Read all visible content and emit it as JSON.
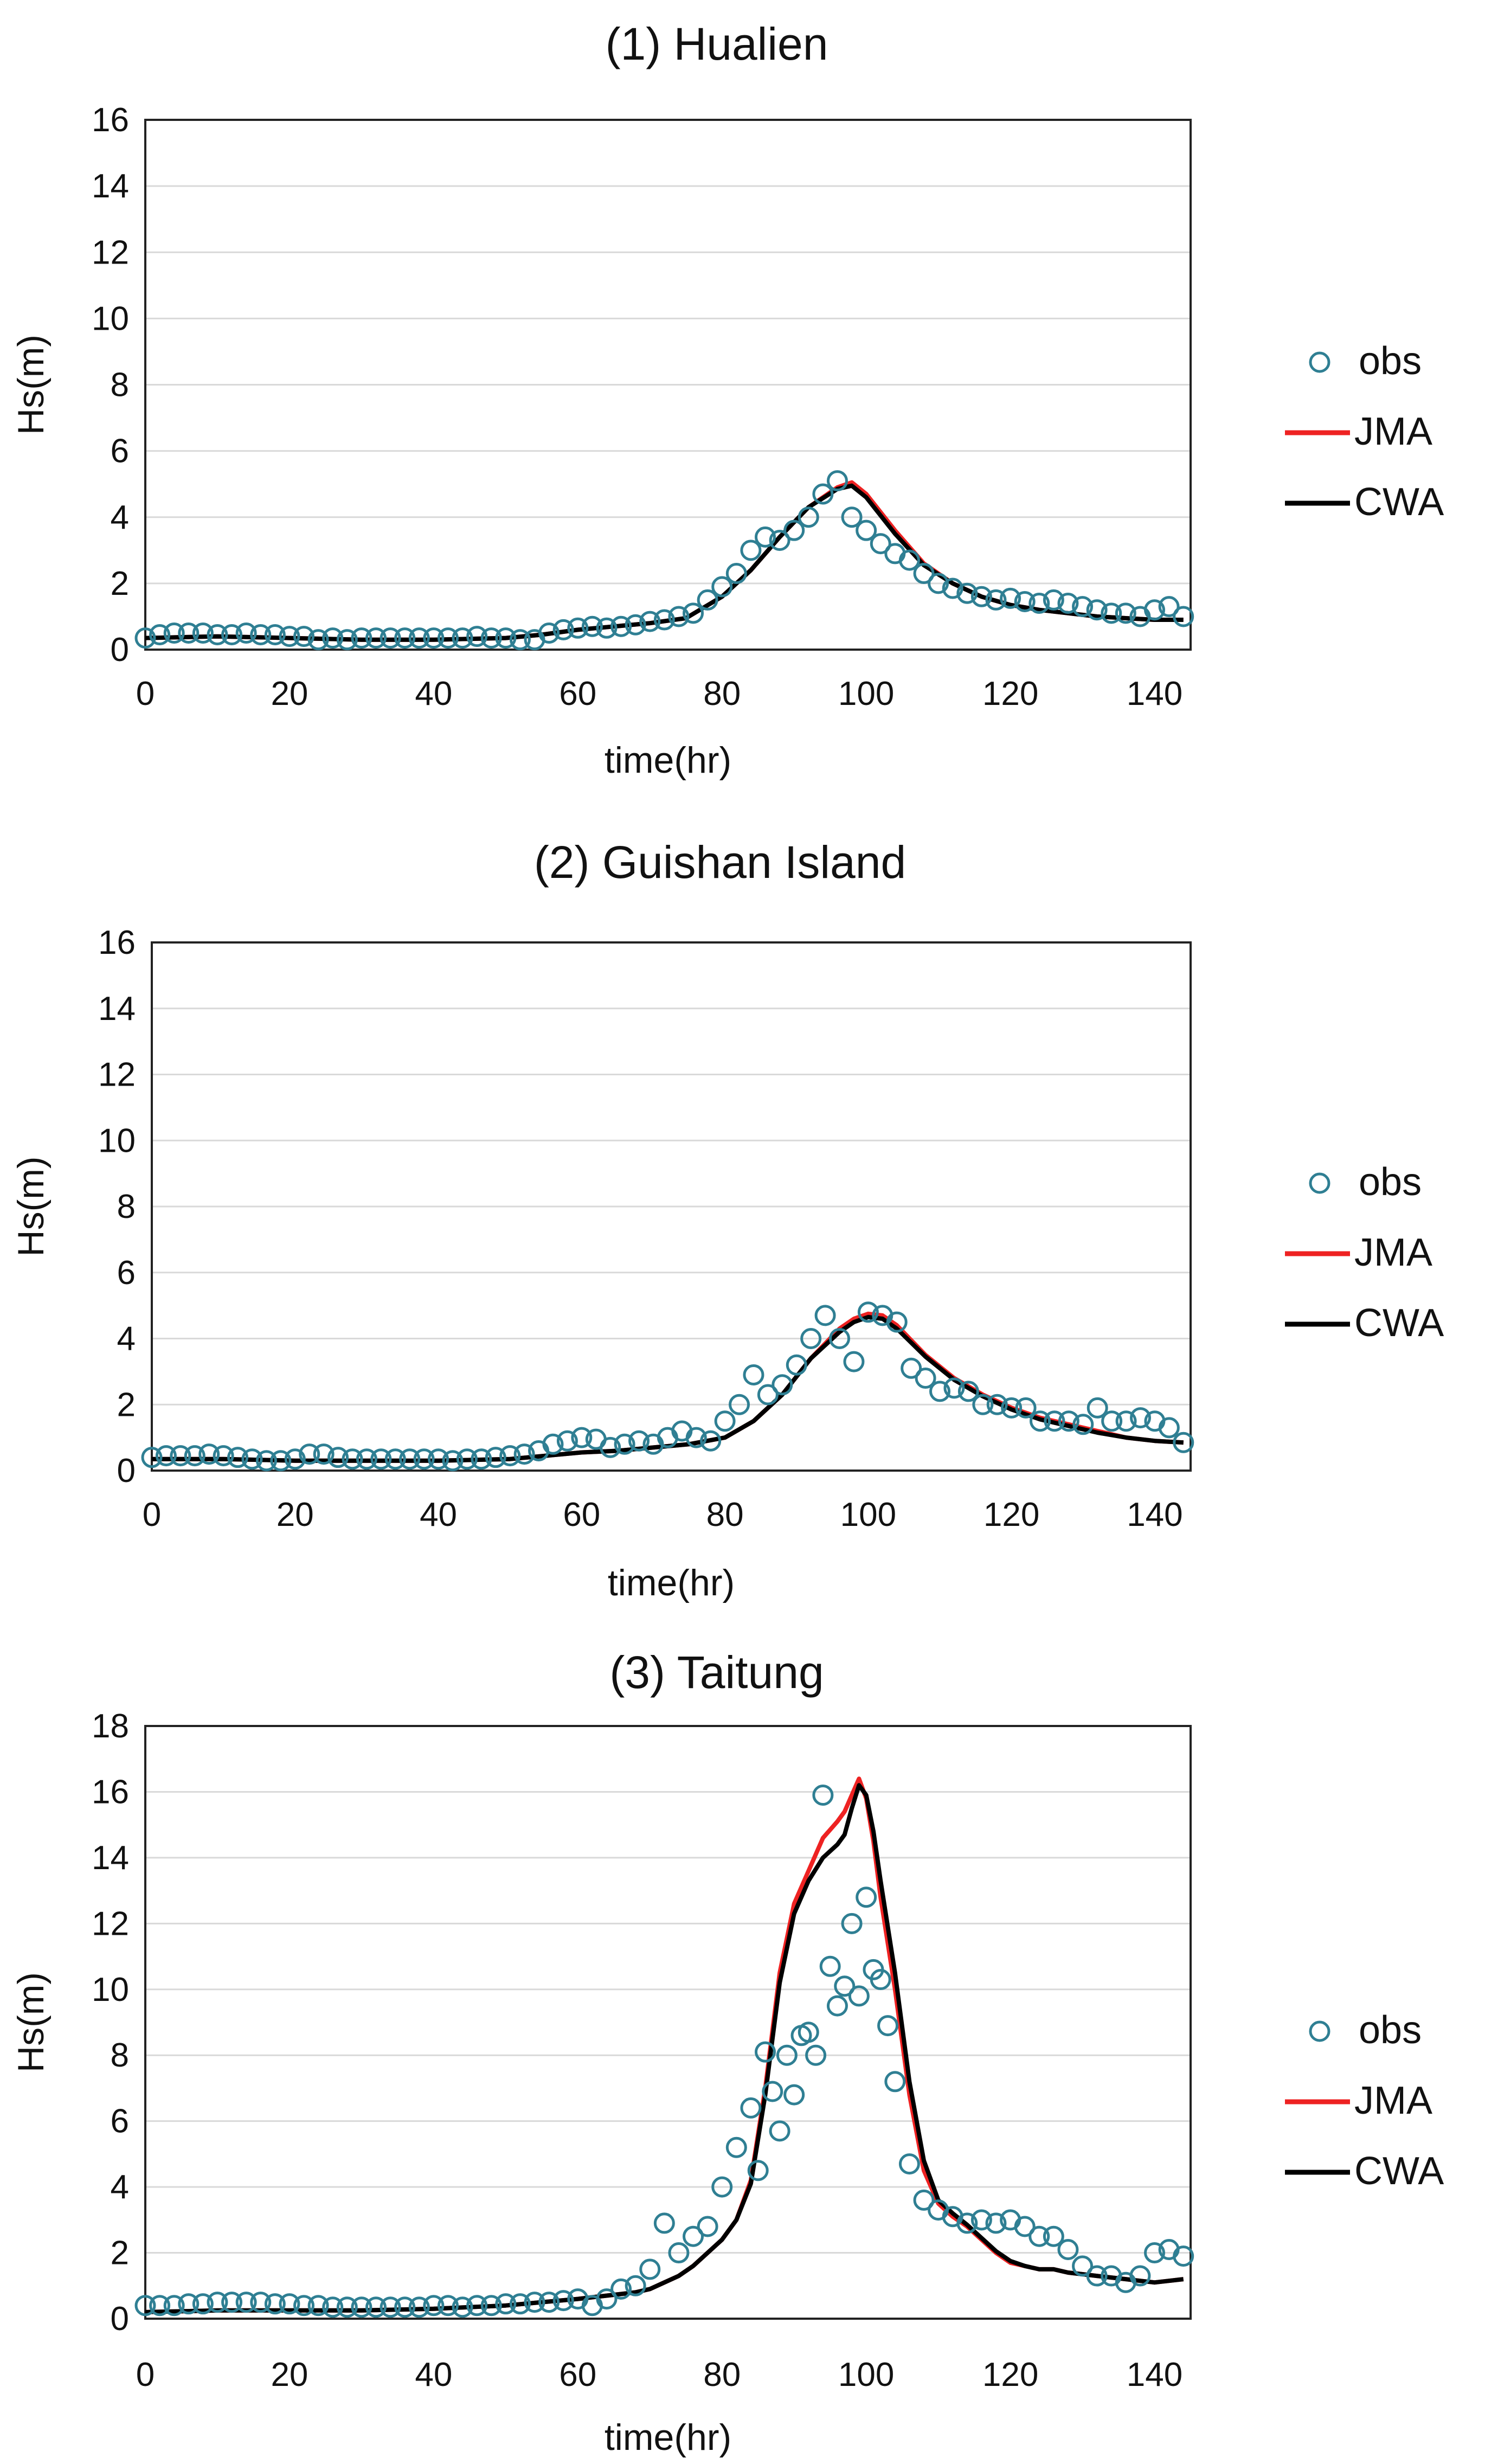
{
  "chart_data": [
    {
      "type": "line",
      "title": "(1) Hualien",
      "xlabel": "time(hr)",
      "ylabel": "Hs(m)",
      "xlim": [
        0,
        145
      ],
      "ylim": [
        0,
        16
      ],
      "xticks": [
        0,
        20,
        40,
        60,
        80,
        100,
        120,
        140
      ],
      "yticks": [
        0,
        2,
        4,
        6,
        8,
        10,
        12,
        14,
        16
      ],
      "grid": true,
      "legend": "right",
      "colors": {
        "obs": "#2f7f93",
        "JMA": "#ee2222",
        "CWA": "#000000"
      },
      "series": [
        {
          "name": "obs",
          "style": "markers",
          "x": [
            0,
            2,
            4,
            6,
            8,
            10,
            12,
            14,
            16,
            18,
            20,
            22,
            24,
            26,
            28,
            30,
            32,
            34,
            36,
            38,
            40,
            42,
            44,
            46,
            48,
            50,
            52,
            54,
            56,
            58,
            60,
            62,
            64,
            66,
            68,
            70,
            72,
            74,
            76,
            78,
            80,
            82,
            84,
            86,
            88,
            90,
            92,
            94,
            96,
            98,
            100,
            102,
            104,
            106,
            108,
            110,
            112,
            114,
            116,
            118,
            120,
            122,
            124,
            126,
            128,
            130,
            132,
            134,
            136,
            138,
            140,
            142,
            144
          ],
          "y": [
            0.35,
            0.45,
            0.5,
            0.5,
            0.5,
            0.45,
            0.45,
            0.5,
            0.45,
            0.45,
            0.4,
            0.4,
            0.3,
            0.35,
            0.3,
            0.35,
            0.35,
            0.35,
            0.35,
            0.35,
            0.35,
            0.35,
            0.35,
            0.4,
            0.35,
            0.35,
            0.3,
            0.3,
            0.5,
            0.6,
            0.65,
            0.7,
            0.65,
            0.7,
            0.75,
            0.85,
            0.9,
            1.0,
            1.1,
            1.5,
            1.9,
            2.3,
            3.0,
            3.4,
            3.3,
            3.6,
            4.0,
            4.7,
            5.1,
            4.0,
            3.6,
            3.2,
            2.9,
            2.7,
            2.3,
            2.0,
            1.85,
            1.7,
            1.6,
            1.5,
            1.55,
            1.45,
            1.4,
            1.5,
            1.4,
            1.3,
            1.2,
            1.1,
            1.1,
            1.0,
            1.2,
            1.3,
            1.0
          ]
        },
        {
          "name": "JMA",
          "style": "line",
          "x": [
            0,
            10,
            20,
            30,
            40,
            50,
            55,
            60,
            65,
            70,
            75,
            80,
            84,
            88,
            92,
            96,
            98,
            100,
            104,
            108,
            112,
            116,
            120,
            124,
            128,
            132,
            136,
            140,
            144
          ],
          "y": [
            0.35,
            0.4,
            0.35,
            0.3,
            0.3,
            0.35,
            0.45,
            0.6,
            0.7,
            0.8,
            0.95,
            1.6,
            2.4,
            3.4,
            4.3,
            4.9,
            5.05,
            4.7,
            3.6,
            2.6,
            2.0,
            1.6,
            1.35,
            1.2,
            1.1,
            1.0,
            0.95,
            0.9,
            0.9
          ]
        },
        {
          "name": "CWA",
          "style": "line",
          "x": [
            0,
            10,
            20,
            30,
            40,
            50,
            55,
            60,
            65,
            70,
            75,
            80,
            84,
            88,
            92,
            96,
            98,
            100,
            104,
            108,
            112,
            116,
            120,
            124,
            128,
            132,
            136,
            140,
            144
          ],
          "y": [
            0.35,
            0.4,
            0.35,
            0.3,
            0.3,
            0.35,
            0.45,
            0.6,
            0.7,
            0.8,
            0.95,
            1.6,
            2.4,
            3.4,
            4.3,
            4.85,
            4.95,
            4.6,
            3.5,
            2.55,
            2.0,
            1.6,
            1.35,
            1.2,
            1.1,
            1.0,
            0.95,
            0.9,
            0.9
          ]
        }
      ]
    },
    {
      "type": "line",
      "title": "(2) Guishan Island",
      "xlabel": "time(hr)",
      "ylabel": "Hs(m)",
      "xlim": [
        0,
        145
      ],
      "ylim": [
        0,
        16
      ],
      "xticks": [
        0,
        20,
        40,
        60,
        80,
        100,
        120,
        140
      ],
      "yticks": [
        0,
        2,
        4,
        6,
        8,
        10,
        12,
        14,
        16
      ],
      "grid": true,
      "legend": "right",
      "colors": {
        "obs": "#2f7f93",
        "JMA": "#ee2222",
        "CWA": "#000000"
      },
      "series": [
        {
          "name": "obs",
          "style": "markers",
          "x": [
            0,
            2,
            4,
            6,
            8,
            10,
            12,
            14,
            16,
            18,
            20,
            22,
            24,
            26,
            28,
            30,
            32,
            34,
            36,
            38,
            40,
            42,
            44,
            46,
            48,
            50,
            52,
            54,
            56,
            58,
            60,
            62,
            64,
            66,
            68,
            70,
            72,
            74,
            76,
            78,
            80,
            82,
            84,
            86,
            88,
            90,
            92,
            94,
            96,
            98,
            100,
            102,
            104,
            106,
            108,
            110,
            112,
            114,
            116,
            118,
            120,
            122,
            124,
            126,
            128,
            130,
            132,
            134,
            136,
            138,
            140,
            142,
            144
          ],
          "y": [
            0.4,
            0.45,
            0.45,
            0.45,
            0.5,
            0.45,
            0.4,
            0.35,
            0.3,
            0.3,
            0.35,
            0.5,
            0.5,
            0.4,
            0.35,
            0.35,
            0.35,
            0.35,
            0.35,
            0.35,
            0.35,
            0.3,
            0.35,
            0.35,
            0.4,
            0.45,
            0.5,
            0.6,
            0.8,
            0.9,
            1.0,
            0.95,
            0.7,
            0.8,
            0.9,
            0.8,
            1.0,
            1.2,
            1.0,
            0.9,
            1.5,
            2.0,
            2.9,
            2.3,
            2.6,
            3.2,
            4.0,
            4.7,
            4.0,
            3.3,
            4.8,
            4.7,
            4.5,
            3.1,
            2.8,
            2.4,
            2.5,
            2.4,
            2.0,
            2.0,
            1.9,
            1.9,
            1.5,
            1.5,
            1.5,
            1.4,
            1.9,
            1.5,
            1.5,
            1.6,
            1.5,
            1.3,
            0.85
          ]
        },
        {
          "name": "JMA",
          "style": "line",
          "x": [
            0,
            10,
            20,
            30,
            40,
            50,
            55,
            60,
            65,
            70,
            75,
            80,
            84,
            88,
            92,
            96,
            98,
            100,
            102,
            104,
            108,
            112,
            116,
            120,
            124,
            128,
            132,
            136,
            140,
            144
          ],
          "y": [
            0.35,
            0.35,
            0.3,
            0.3,
            0.3,
            0.35,
            0.45,
            0.55,
            0.6,
            0.7,
            0.8,
            1.0,
            1.5,
            2.3,
            3.4,
            4.3,
            4.6,
            4.75,
            4.7,
            4.4,
            3.5,
            2.8,
            2.3,
            1.9,
            1.6,
            1.4,
            1.2,
            1.0,
            0.9,
            0.85
          ]
        },
        {
          "name": "CWA",
          "style": "line",
          "x": [
            0,
            10,
            20,
            30,
            40,
            50,
            55,
            60,
            65,
            70,
            75,
            80,
            84,
            88,
            92,
            96,
            98,
            100,
            102,
            104,
            108,
            112,
            116,
            120,
            124,
            128,
            132,
            136,
            140,
            144
          ],
          "y": [
            0.35,
            0.35,
            0.3,
            0.3,
            0.3,
            0.35,
            0.45,
            0.55,
            0.6,
            0.7,
            0.8,
            1.0,
            1.5,
            2.3,
            3.4,
            4.2,
            4.5,
            4.65,
            4.6,
            4.3,
            3.45,
            2.75,
            2.25,
            1.85,
            1.55,
            1.35,
            1.15,
            1.0,
            0.9,
            0.85
          ]
        }
      ]
    },
    {
      "type": "line",
      "title": "(3) Taitung",
      "xlabel": "time(hr)",
      "ylabel": "Hs(m)",
      "xlim": [
        0,
        145
      ],
      "ylim": [
        0,
        18
      ],
      "xticks": [
        0,
        20,
        40,
        60,
        80,
        100,
        120,
        140
      ],
      "yticks": [
        0,
        2,
        4,
        6,
        8,
        10,
        12,
        14,
        16,
        18
      ],
      "grid": true,
      "legend": "right",
      "colors": {
        "obs": "#2f7f93",
        "JMA": "#ee2222",
        "CWA": "#000000"
      },
      "series": [
        {
          "name": "obs",
          "style": "markers",
          "x": [
            0,
            2,
            4,
            6,
            8,
            10,
            12,
            14,
            16,
            18,
            20,
            22,
            24,
            26,
            28,
            30,
            32,
            34,
            36,
            38,
            40,
            42,
            44,
            46,
            48,
            50,
            52,
            54,
            56,
            58,
            60,
            62,
            64,
            66,
            68,
            70,
            72,
            74,
            76,
            78,
            80,
            82,
            84,
            85,
            86,
            87,
            88,
            89,
            90,
            91,
            92,
            93,
            94,
            95,
            96,
            97,
            98,
            99,
            100,
            101,
            102,
            103,
            104,
            106,
            108,
            110,
            112,
            114,
            116,
            118,
            120,
            122,
            124,
            126,
            128,
            130,
            132,
            134,
            136,
            138,
            140,
            142,
            144
          ],
          "y": [
            0.4,
            0.4,
            0.4,
            0.45,
            0.45,
            0.5,
            0.5,
            0.5,
            0.5,
            0.45,
            0.45,
            0.4,
            0.4,
            0.35,
            0.35,
            0.35,
            0.35,
            0.35,
            0.35,
            0.35,
            0.4,
            0.4,
            0.35,
            0.4,
            0.4,
            0.45,
            0.45,
            0.5,
            0.5,
            0.55,
            0.6,
            0.4,
            0.6,
            0.9,
            1.0,
            1.5,
            2.9,
            2.0,
            2.5,
            2.8,
            4.0,
            5.2,
            6.4,
            4.5,
            8.1,
            6.9,
            5.7,
            8.0,
            6.8,
            8.6,
            8.7,
            8.0,
            15.9,
            10.7,
            9.5,
            10.1,
            12.0,
            9.8,
            12.8,
            10.6,
            10.3,
            8.9,
            7.2,
            4.7,
            3.6,
            3.3,
            3.1,
            2.9,
            3.0,
            2.9,
            3.0,
            2.8,
            2.5,
            2.5,
            2.1,
            1.6,
            1.3,
            1.3,
            1.1,
            1.3,
            2.0,
            2.1,
            1.9
          ]
        },
        {
          "name": "JMA",
          "style": "line",
          "x": [
            0,
            10,
            20,
            30,
            40,
            50,
            55,
            60,
            62,
            64,
            66,
            68,
            70,
            72,
            74,
            76,
            78,
            80,
            82,
            84,
            86,
            88,
            90,
            92,
            94,
            96,
            97,
            98,
            99,
            100,
            101,
            102,
            104,
            106,
            108,
            110,
            112,
            114,
            116,
            118,
            120,
            122,
            124,
            126,
            128,
            130,
            132,
            134,
            136,
            138,
            140,
            142,
            144
          ],
          "y": [
            0.2,
            0.25,
            0.25,
            0.25,
            0.3,
            0.4,
            0.5,
            0.6,
            0.65,
            0.7,
            0.75,
            0.8,
            0.9,
            1.1,
            1.3,
            1.6,
            2.0,
            2.4,
            3.0,
            4.2,
            7.0,
            10.5,
            12.6,
            13.6,
            14.6,
            15.1,
            15.4,
            15.9,
            16.4,
            15.8,
            14.5,
            12.8,
            10.0,
            6.8,
            4.5,
            3.5,
            3.1,
            2.8,
            2.4,
            2.0,
            1.7,
            1.6,
            1.5,
            1.5,
            1.4,
            1.35,
            1.3,
            1.25,
            1.2,
            1.15,
            1.1,
            1.15,
            1.2
          ]
        },
        {
          "name": "CWA",
          "style": "line",
          "x": [
            0,
            10,
            20,
            30,
            40,
            50,
            55,
            60,
            62,
            64,
            66,
            68,
            70,
            72,
            74,
            76,
            78,
            80,
            82,
            84,
            86,
            88,
            90,
            92,
            94,
            96,
            97,
            98,
            99,
            100,
            101,
            102,
            104,
            106,
            108,
            110,
            112,
            114,
            116,
            118,
            120,
            122,
            124,
            126,
            128,
            130,
            132,
            134,
            136,
            138,
            140,
            142,
            144
          ],
          "y": [
            0.2,
            0.25,
            0.25,
            0.25,
            0.3,
            0.4,
            0.5,
            0.6,
            0.65,
            0.7,
            0.75,
            0.8,
            0.9,
            1.1,
            1.3,
            1.6,
            2.0,
            2.4,
            3.0,
            4.1,
            6.8,
            10.2,
            12.3,
            13.3,
            14.0,
            14.4,
            14.7,
            15.5,
            16.2,
            15.9,
            14.8,
            13.3,
            10.5,
            7.2,
            4.8,
            3.6,
            3.2,
            2.85,
            2.45,
            2.05,
            1.75,
            1.6,
            1.5,
            1.5,
            1.4,
            1.35,
            1.3,
            1.25,
            1.2,
            1.15,
            1.1,
            1.15,
            1.2
          ]
        }
      ]
    }
  ]
}
